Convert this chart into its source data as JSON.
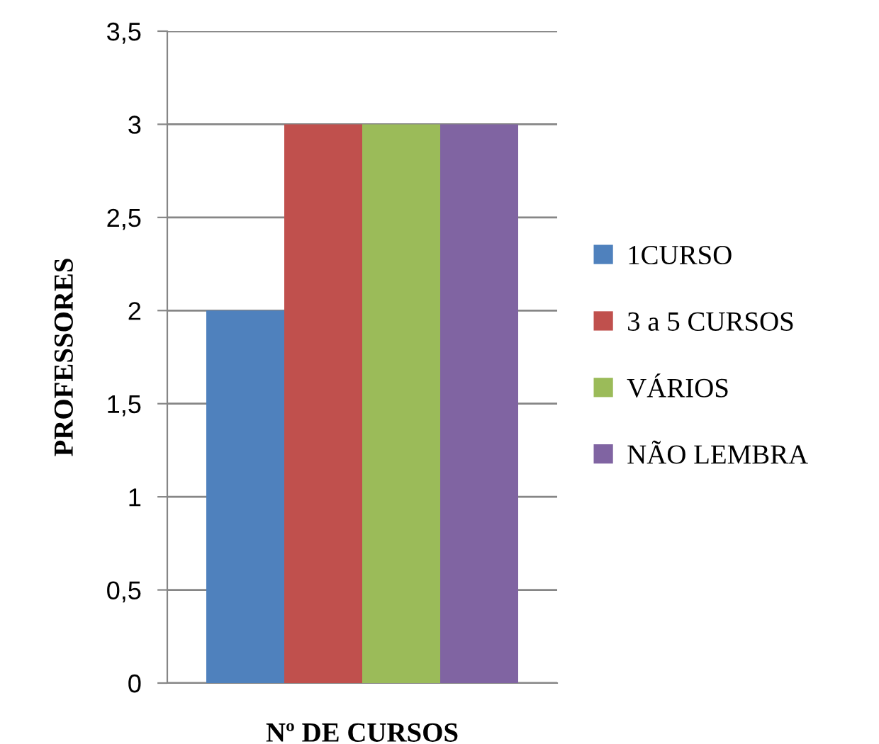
{
  "chart_data": {
    "type": "bar",
    "ylabel": "PROFESSORES",
    "xlabel": "Nº DE CURSOS",
    "categories": [
      null
    ],
    "series": [
      {
        "name": "1CURSO",
        "color": "#4f81bd",
        "values": [
          2
        ]
      },
      {
        "name": "3 a 5 CURSOS",
        "color": "#c0504d",
        "values": [
          3
        ]
      },
      {
        "name": "VÁRIOS",
        "color": "#9bbb59",
        "values": [
          3
        ]
      },
      {
        "name": "NÃO LEMBRA",
        "color": "#8064a2",
        "values": [
          3
        ]
      }
    ],
    "ylim": [
      0,
      3.5
    ],
    "yticks": [
      0,
      {
        "value": 0.5,
        "label": "0,5"
      },
      1,
      {
        "value": 1.5,
        "label": "1,5"
      },
      2,
      {
        "value": 2.5,
        "label": "2,5"
      },
      3,
      {
        "value": 3.5,
        "label": "3,5"
      }
    ],
    "grid": "y",
    "legend": "right"
  }
}
